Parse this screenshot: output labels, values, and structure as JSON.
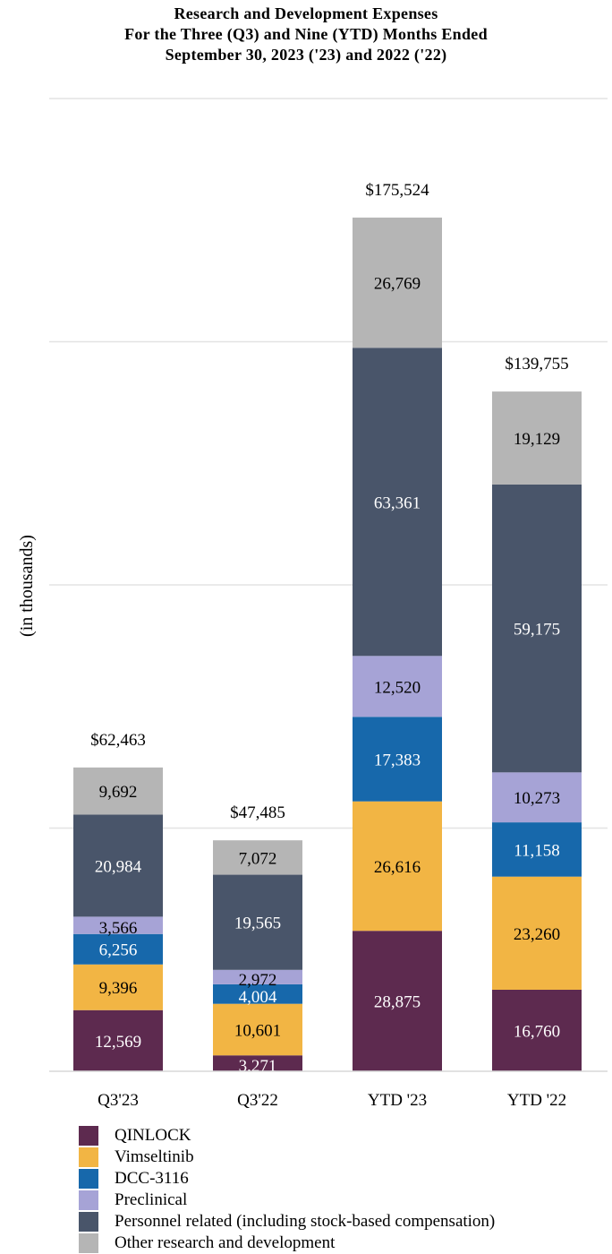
{
  "chart_data": {
    "type": "bar",
    "stacked": true,
    "title": [
      "Research and Development Expenses",
      "For the Three (Q3) and Nine (YTD) Months Ended",
      "September 30, 2023 ('23) and 2022 ('22)"
    ],
    "xlabel": "",
    "ylabel": "(in thousands)",
    "ylim": [
      0,
      200000
    ],
    "gridlines": [
      50000,
      100000,
      150000,
      200000
    ],
    "grid": true,
    "legend_position": "bottom",
    "categories": [
      "Q3'23",
      "Q3'22",
      "YTD '23",
      "YTD '22"
    ],
    "totals": [
      "$62,463",
      "$47,485",
      "$175,524",
      "$139,755"
    ],
    "series": [
      {
        "name": "QINLOCK",
        "color": "#5d2a4f",
        "label_color": "#ffffff",
        "values": [
          12569,
          3271,
          28875,
          16760
        ],
        "labels": [
          "12,569",
          "3,271",
          "28,875",
          "16,760"
        ]
      },
      {
        "name": "Vimseltinib",
        "color": "#f2b544",
        "label_color": "#000000",
        "values": [
          9396,
          10601,
          26616,
          23260
        ],
        "labels": [
          "9,396",
          "10,601",
          "26,616",
          "23,260"
        ]
      },
      {
        "name": "DCC-3116",
        "color": "#1768ab",
        "label_color": "#ffffff",
        "values": [
          6256,
          4004,
          17383,
          11158
        ],
        "labels": [
          "6,256",
          "4,004",
          "17,383",
          "11,158"
        ]
      },
      {
        "name": "Preclinical",
        "color": "#a6a3d6",
        "label_color": "#000000",
        "values": [
          3566,
          2972,
          12520,
          10273
        ],
        "labels": [
          "3,566",
          "2,972",
          "12,520",
          "10,273"
        ]
      },
      {
        "name": "Personnel related (including stock-based compensation)",
        "color": "#49556a",
        "label_color": "#ffffff",
        "values": [
          20984,
          19565,
          63361,
          59175
        ],
        "labels": [
          "20,984",
          "19,565",
          "63,361",
          "59,175"
        ]
      },
      {
        "name": "Other research and development",
        "color": "#b5b5b5",
        "label_color": "#000000",
        "values": [
          9692,
          7072,
          26769,
          19129
        ],
        "labels": [
          "9,692",
          "7,072",
          "26,769",
          "19,129"
        ]
      }
    ]
  }
}
